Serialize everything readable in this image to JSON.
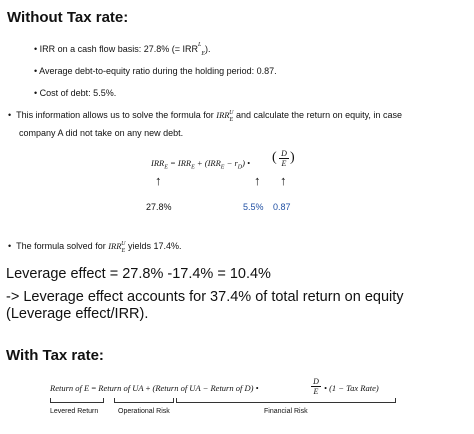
{
  "section1": {
    "title": "Without Tax rate:",
    "bullets": [
      "IRR on a cash flow basis: 27.8% (= IRR",
      "Average debt-to-equity ratio during the holding period: 0.87.",
      "Cost of debt: 5.5%."
    ],
    "bullet1_tail": ").",
    "info_line1": "This information allows us to solve the formula for",
    "info_line1_tail": "and calculate the return on equity, in case",
    "info_line2": "company A did not take on any new debt.",
    "formula_lhs": "IRR",
    "formula_rhs": "= IRR",
    "formula_mid": "+ (IRR",
    "formula_rd": "− r",
    "formula_rd_tail": ") •",
    "formula_frac_num": "D",
    "formula_frac_den": "E",
    "arrow_glyph": "↑",
    "values": {
      "irr": "27.8%",
      "rd": "5.5%",
      "de": "0.87"
    },
    "solved": "The formula solved for",
    "solved_tail": "yields 17.4%.",
    "leverage_effect": "Leverage effect = 27.8% -17.4% = 10.4%",
    "leverage_share": "-> Leverage effect accounts for 37.4% of total return on equity (Leverage effect/IRR)."
  },
  "section2": {
    "title": "With Tax rate:",
    "eq_left": "Return of E",
    "eq_equals": "=",
    "eq_ua": "Return of UA",
    "eq_plus": "+",
    "eq_paren": "(Return of UA − Return of D) •",
    "eq_frac_num": "D",
    "eq_frac_den": "E",
    "eq_tail": "• (1 − Tax Rate)",
    "labels": {
      "levered": "Levered Return",
      "operational": "Operational Risk",
      "financial": "Financial Risk"
    }
  }
}
